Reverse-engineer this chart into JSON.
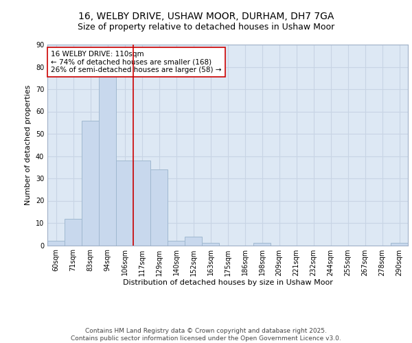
{
  "title1": "16, WELBY DRIVE, USHAW MOOR, DURHAM, DH7 7GA",
  "title2": "Size of property relative to detached houses in Ushaw Moor",
  "xlabel": "Distribution of detached houses by size in Ushaw Moor",
  "ylabel": "Number of detached properties",
  "bin_labels": [
    "60sqm",
    "71sqm",
    "83sqm",
    "94sqm",
    "106sqm",
    "117sqm",
    "129sqm",
    "140sqm",
    "152sqm",
    "163sqm",
    "175sqm",
    "186sqm",
    "198sqm",
    "209sqm",
    "221sqm",
    "232sqm",
    "244sqm",
    "255sqm",
    "267sqm",
    "278sqm",
    "290sqm"
  ],
  "bar_values": [
    2,
    12,
    56,
    76,
    38,
    38,
    34,
    2,
    4,
    1,
    0,
    0,
    1,
    0,
    0,
    0,
    0,
    0,
    0,
    0,
    1
  ],
  "bar_color": "#c8d8ed",
  "bar_edge_color": "#a0b8d0",
  "grid_color": "#c8d4e4",
  "background_color": "#dde8f4",
  "vline_x": 4.5,
  "vline_color": "#cc0000",
  "annotation_text": "16 WELBY DRIVE: 110sqm\n← 74% of detached houses are smaller (168)\n26% of semi-detached houses are larger (58) →",
  "annotation_box_color": "#ffffff",
  "annotation_box_edge": "#cc0000",
  "ylim": [
    0,
    90
  ],
  "yticks": [
    0,
    10,
    20,
    30,
    40,
    50,
    60,
    70,
    80,
    90
  ],
  "footer_text": "Contains HM Land Registry data © Crown copyright and database right 2025.\nContains public sector information licensed under the Open Government Licence v3.0.",
  "title1_fontsize": 10,
  "title2_fontsize": 9,
  "axis_label_fontsize": 8,
  "tick_fontsize": 7,
  "annotation_fontsize": 7.5,
  "footer_fontsize": 6.5
}
